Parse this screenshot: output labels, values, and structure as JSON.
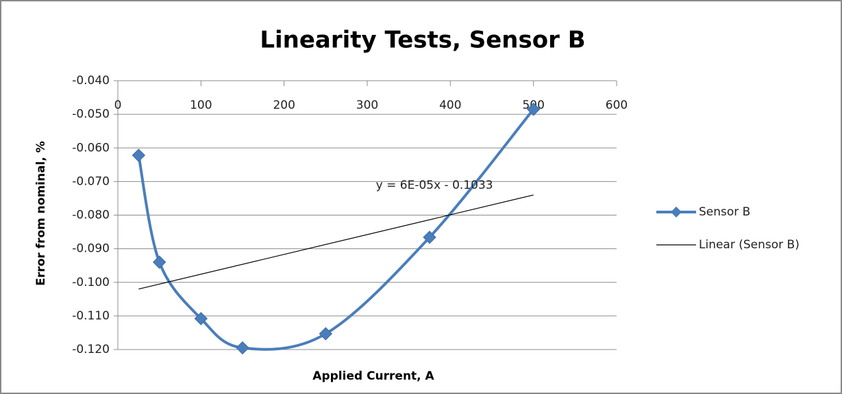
{
  "chart_data": {
    "type": "scatter",
    "title": "Linearity Tests, Sensor B",
    "xlabel": "Applied Current, A",
    "ylabel": "Error from nominal, %",
    "series": [
      {
        "name": "Sensor B",
        "color": "#4a7ebb",
        "smooth": true,
        "marker": "diamond",
        "x": [
          25,
          50,
          100,
          150,
          250,
          375,
          500
        ],
        "values": [
          -0.0622,
          -0.094,
          -0.1108,
          -0.1195,
          -0.1153,
          -0.0866,
          -0.0485
        ]
      },
      {
        "name": "Linear (Sensor B)",
        "color": "#000000",
        "smooth": false,
        "marker": "none",
        "x": [
          25,
          500
        ],
        "values": [
          -0.102,
          -0.074
        ]
      }
    ],
    "annotations": [
      {
        "text": "y = 6E-05x - 0.1033"
      }
    ],
    "xlim": [
      0,
      600
    ],
    "xticks": [
      0,
      100,
      200,
      300,
      400,
      500,
      600
    ],
    "ylim": [
      -0.12,
      -0.04
    ],
    "yticks": [
      {
        "value": -0.04,
        "label": "-0.040"
      },
      {
        "value": -0.05,
        "label": "-0.050"
      },
      {
        "value": -0.06,
        "label": "-0.060"
      },
      {
        "value": -0.07,
        "label": "-0.070"
      },
      {
        "value": -0.08,
        "label": "-0.080"
      },
      {
        "value": -0.09,
        "label": "-0.090"
      },
      {
        "value": -0.1,
        "label": "-0.100"
      },
      {
        "value": -0.11,
        "label": "-0.110"
      },
      {
        "value": -0.12,
        "label": "-0.120"
      }
    ],
    "grid": true,
    "legend": "right"
  }
}
